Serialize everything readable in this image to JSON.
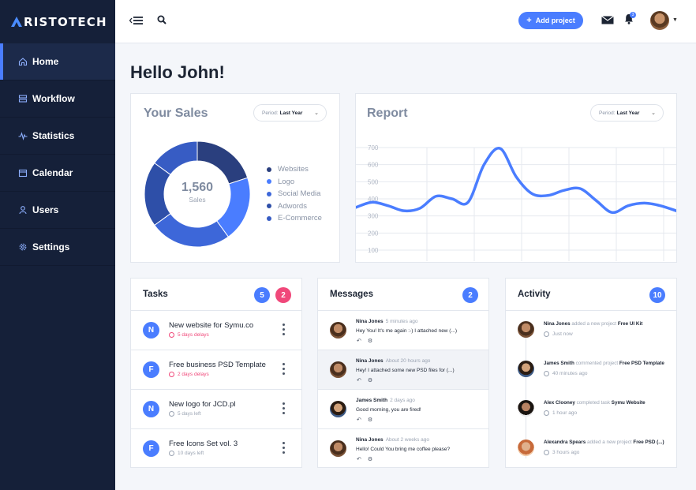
{
  "app": {
    "logo_letter": "A",
    "logo_rest": "RISTOTECH"
  },
  "sidebar": {
    "items": [
      {
        "label": "Home",
        "icon": "home-icon",
        "active": true
      },
      {
        "label": "Workflow",
        "icon": "workflow-icon"
      },
      {
        "label": "Statistics",
        "icon": "statistics-icon"
      },
      {
        "label": "Calendar",
        "icon": "calendar-icon"
      },
      {
        "label": "Users",
        "icon": "user-icon"
      },
      {
        "label": "Settings",
        "icon": "gear-icon"
      }
    ]
  },
  "header": {
    "add_project_label": "Add project",
    "notifications_count": "3"
  },
  "greeting": "Hello John!",
  "sales": {
    "title": "Your Sales",
    "period_prefix": "Period:",
    "period_value": "Last Year",
    "total": "1,560",
    "total_label": "Sales",
    "legend": [
      {
        "label": "Websites",
        "color": "#2a3f7e"
      },
      {
        "label": "Logo",
        "color": "#4a7dff"
      },
      {
        "label": "Social Media",
        "color": "#3d67d9"
      },
      {
        "label": "Adwords",
        "color": "#2e4fa8"
      },
      {
        "label": "E-Commerce",
        "color": "#375cc4"
      }
    ]
  },
  "report": {
    "title": "Report",
    "period_prefix": "Period:",
    "period_value": "Last Year"
  },
  "chart_data": [
    {
      "type": "pie",
      "title": "Your Sales",
      "categories": [
        "Websites",
        "Logo",
        "Social Media",
        "Adwords",
        "E-Commerce"
      ],
      "values": [
        20,
        20,
        25,
        20,
        15
      ],
      "colors": [
        "#2a3f7e",
        "#4a7dff",
        "#3d67d9",
        "#2e4fa8",
        "#375cc4"
      ],
      "center_value": "1,560",
      "center_label": "Sales"
    },
    {
      "type": "line",
      "title": "Report",
      "yticks": [
        700,
        600,
        500,
        400,
        300,
        200,
        100
      ],
      "ylim": [
        100,
        700
      ],
      "x": [
        0,
        1,
        2,
        3,
        4,
        5,
        6,
        7,
        8,
        9,
        10,
        11,
        12,
        13,
        14,
        15,
        16,
        17,
        18,
        19,
        20
      ],
      "values": [
        350,
        380,
        360,
        330,
        345,
        415,
        400,
        380,
        600,
        695,
        530,
        430,
        420,
        450,
        460,
        390,
        320,
        360,
        375,
        360,
        330
      ],
      "grid": true,
      "color": "#4a7dff"
    }
  ],
  "tasks": {
    "title": "Tasks",
    "badge_a": "5",
    "badge_b": "2",
    "items": [
      {
        "letter": "N",
        "title": "New website for Symu.co",
        "meta": "5 days delays",
        "late": true
      },
      {
        "letter": "F",
        "title": "Free business PSD Template",
        "meta": "2 days delays",
        "late": true
      },
      {
        "letter": "N",
        "title": "New logo for JCD.pl",
        "meta": "5 days left",
        "late": false
      },
      {
        "letter": "F",
        "title": "Free Icons Set vol. 3",
        "meta": "10 days left",
        "late": false
      }
    ]
  },
  "messages": {
    "title": "Messages",
    "badge": "2",
    "items": [
      {
        "name": "Nina Jones",
        "time": "5 minutes ago",
        "text": "Hey You! It's me again :-) I attached new (...)"
      },
      {
        "name": "Nina Jones",
        "time": "About 20 hours ago",
        "text": "Hey! I attached some new PSD files for (...)"
      },
      {
        "name": "James Smith",
        "time": "2 days ago",
        "text": "Good morning, you are fired!"
      },
      {
        "name": "Nina Jones",
        "time": "About 2 weeks ago",
        "text": "Hello! Could You bring me coffee please?"
      }
    ]
  },
  "activity": {
    "title": "Activity",
    "badge": "10",
    "items": [
      {
        "name": "Nina Jones",
        "action": "added a new project",
        "target": "Free UI Kit",
        "time": "Just now"
      },
      {
        "name": "James Smith",
        "action": "commented project",
        "target": "Free PSD Template",
        "time": "40 minutes ago"
      },
      {
        "name": "Alex Clooney",
        "action": "completed task",
        "target": "Symu Website",
        "time": "1 hour ago"
      },
      {
        "name": "Alexandra Spears",
        "action": "added a new project",
        "target": "Free PSD (...)",
        "time": "3 hours ago"
      }
    ]
  },
  "colors": {
    "accent": "#4a7dff",
    "sidebar": "#152039",
    "pink": "#f0487a"
  }
}
